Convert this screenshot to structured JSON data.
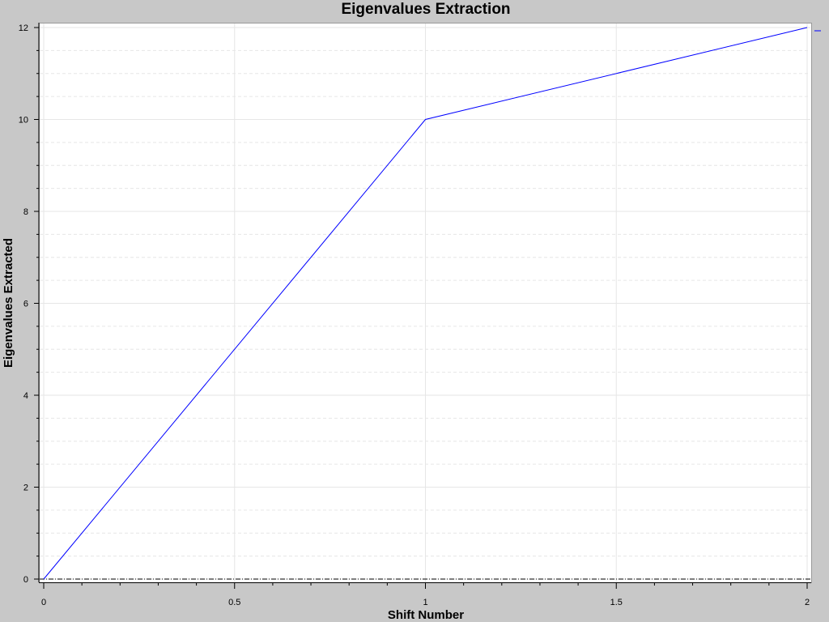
{
  "chart_data": {
    "type": "line",
    "title": "Eigenvalues Extraction",
    "xlabel": "Shift Number",
    "ylabel": "Eigenvalues Extracted",
    "xlim": [
      0,
      2
    ],
    "ylim": [
      0,
      12
    ],
    "x_ticks": [
      0,
      0.5,
      1,
      1.5,
      2
    ],
    "x_tick_labels": [
      "0",
      "0.5",
      "1",
      "1.5",
      "2"
    ],
    "y_ticks": [
      0,
      2,
      4,
      6,
      8,
      10,
      12
    ],
    "y_tick_labels": [
      "0",
      "2",
      "4",
      "6",
      "8",
      "10",
      "12"
    ],
    "grid": true,
    "legend": "top-right",
    "series": [
      {
        "name": "",
        "color": "#0000ff",
        "x": [
          0,
          1,
          2
        ],
        "y": [
          0,
          10,
          12
        ]
      }
    ]
  },
  "colors": {
    "background": "#c8c8c8",
    "plot_area": "#ffffff",
    "grid": "#e6e6e6",
    "line": "#0000ff"
  }
}
